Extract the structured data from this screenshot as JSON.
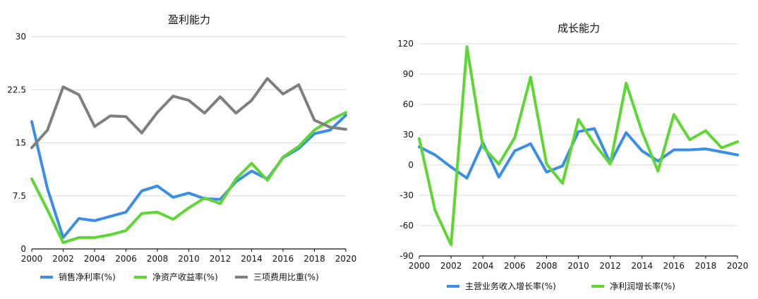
{
  "colors": {
    "blue": "#3a8ee8",
    "green": "#5ed633",
    "gray": "#7f7f7f",
    "grid": "#d9d9d9",
    "axis": "#111111"
  },
  "chart_data": [
    {
      "type": "line",
      "title": "盈利能力",
      "xlabel": "",
      "ylabel": "",
      "x": [
        2000,
        2001,
        2002,
        2003,
        2004,
        2005,
        2006,
        2007,
        2008,
        2009,
        2010,
        2011,
        2012,
        2013,
        2014,
        2015,
        2016,
        2017,
        2018,
        2019,
        2020
      ],
      "x_ticks": [
        "2000",
        "2002",
        "2004",
        "2006",
        "2008",
        "2010",
        "2012",
        "2014",
        "2016",
        "2018",
        "2020"
      ],
      "y_ticks": [
        "0",
        "7.5",
        "15",
        "22.5",
        "30"
      ],
      "ylim": [
        0,
        30
      ],
      "grid": true,
      "legend": "bottom",
      "series": [
        {
          "name": "销售净利率(%)",
          "color": "#3a8ee8",
          "values": [
            18.0,
            8.5,
            1.6,
            4.3,
            4.0,
            4.6,
            5.2,
            8.2,
            8.9,
            7.3,
            7.9,
            7.1,
            7.0,
            9.5,
            11.0,
            9.9,
            12.9,
            14.2,
            16.3,
            16.8,
            18.9
          ]
        },
        {
          "name": "净资产收益率(%)",
          "color": "#5ed633",
          "values": [
            9.9,
            5.5,
            0.9,
            1.6,
            1.6,
            2.0,
            2.6,
            5.0,
            5.2,
            4.2,
            5.8,
            7.2,
            6.4,
            9.9,
            12.1,
            9.7,
            13.0,
            14.5,
            16.8,
            18.2,
            19.3
          ]
        },
        {
          "name": "三项费用比重(%)",
          "color": "#7f7f7f",
          "values": [
            14.3,
            16.8,
            22.9,
            21.8,
            17.3,
            18.8,
            18.7,
            16.4,
            19.3,
            21.6,
            21.0,
            19.2,
            21.5,
            19.2,
            21.0,
            24.1,
            21.9,
            23.2,
            18.2,
            17.2,
            16.9
          ]
        }
      ]
    },
    {
      "type": "line",
      "title": "成长能力",
      "xlabel": "",
      "ylabel": "",
      "x": [
        2000,
        2001,
        2002,
        2003,
        2004,
        2005,
        2006,
        2007,
        2008,
        2009,
        2010,
        2011,
        2012,
        2013,
        2014,
        2015,
        2016,
        2017,
        2018,
        2019,
        2020
      ],
      "x_ticks": [
        "2000",
        "2002",
        "2004",
        "2006",
        "2008",
        "2010",
        "2012",
        "2014",
        "2016",
        "2018",
        "2020"
      ],
      "y_ticks": [
        "-90",
        "-60",
        "-30",
        "0",
        "30",
        "60",
        "90",
        "120"
      ],
      "ylim": [
        -90,
        120
      ],
      "grid": true,
      "legend": "bottom",
      "series": [
        {
          "name": "主营业务收入增长率(%)",
          "color": "#3a8ee8",
          "values": [
            18,
            10,
            -2,
            -13,
            22,
            -12,
            14,
            21,
            -7,
            -1,
            33,
            36,
            2,
            32,
            14,
            4,
            15,
            15,
            16,
            13,
            10
          ]
        },
        {
          "name": "净利润增长率(%)",
          "color": "#5ed633",
          "values": [
            26,
            -45,
            -79,
            117,
            18,
            1,
            27,
            87,
            1,
            -18,
            45,
            21,
            1,
            81,
            33,
            -6,
            50,
            25,
            34,
            17,
            23
          ]
        }
      ]
    }
  ]
}
